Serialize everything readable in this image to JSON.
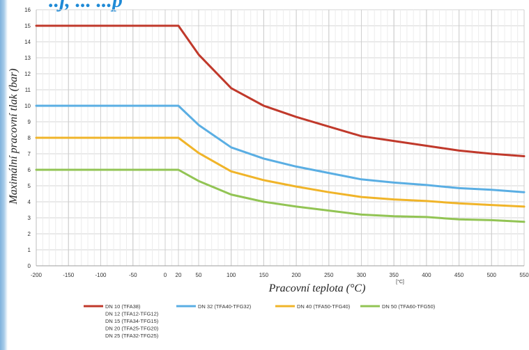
{
  "header": {
    "title_fragment": "..j, ... ...p"
  },
  "chart_data": {
    "type": "line",
    "xlabel": "Pracovní teplota (°C)",
    "ylabel": "Maximální pracovní tlak (bar)",
    "unit_annotation": "[°C]",
    "xlim": [
      -200,
      550
    ],
    "ylim": [
      0,
      16
    ],
    "x_ticks": [
      -200,
      -150,
      -100,
      -50,
      0,
      20,
      50,
      100,
      150,
      200,
      250,
      300,
      350,
      400,
      450,
      500,
      550
    ],
    "y_ticks": [
      0,
      1,
      2,
      3,
      4,
      5,
      6,
      7,
      8,
      9,
      10,
      11,
      12,
      13,
      14,
      15,
      16
    ],
    "grid": true,
    "legend_position": "bottom",
    "series": [
      {
        "name": "DN 10 (TFA38)",
        "extra_legend_lines": [
          "DN 12 (TFA12-TFG12)",
          "DN 15 (TFA34-TFG15)",
          "DN 20 (TFA25-TFG20)",
          "DN 25 (TFA32-TFG25)"
        ],
        "color": "#c0392b",
        "points": [
          [
            -200,
            15
          ],
          [
            20,
            15
          ],
          [
            50,
            13.2
          ],
          [
            100,
            11.1
          ],
          [
            150,
            10
          ],
          [
            200,
            9.3
          ],
          [
            250,
            8.7
          ],
          [
            300,
            8.1
          ],
          [
            350,
            7.8
          ],
          [
            400,
            7.5
          ],
          [
            450,
            7.2
          ],
          [
            500,
            7.0
          ],
          [
            550,
            6.85
          ]
        ]
      },
      {
        "name": "DN 32 (TFA40-TFG32)",
        "color": "#5aaee3",
        "points": [
          [
            -200,
            10
          ],
          [
            20,
            10
          ],
          [
            50,
            8.8
          ],
          [
            100,
            7.4
          ],
          [
            150,
            6.7
          ],
          [
            200,
            6.2
          ],
          [
            250,
            5.8
          ],
          [
            300,
            5.4
          ],
          [
            350,
            5.2
          ],
          [
            400,
            5.05
          ],
          [
            450,
            4.85
          ],
          [
            500,
            4.75
          ],
          [
            550,
            4.6
          ]
        ]
      },
      {
        "name": "DN 40 (TFA50-TFG40)",
        "color": "#f0b429",
        "points": [
          [
            -200,
            8
          ],
          [
            20,
            8
          ],
          [
            50,
            7.05
          ],
          [
            100,
            5.9
          ],
          [
            150,
            5.35
          ],
          [
            200,
            4.95
          ],
          [
            250,
            4.6
          ],
          [
            300,
            4.3
          ],
          [
            350,
            4.15
          ],
          [
            400,
            4.05
          ],
          [
            450,
            3.9
          ],
          [
            500,
            3.8
          ],
          [
            550,
            3.7
          ]
        ]
      },
      {
        "name": "DN 50 (TFA60-TFG50)",
        "color": "#92c454",
        "points": [
          [
            -200,
            6
          ],
          [
            20,
            6
          ],
          [
            50,
            5.3
          ],
          [
            100,
            4.45
          ],
          [
            150,
            4.0
          ],
          [
            200,
            3.7
          ],
          [
            250,
            3.45
          ],
          [
            300,
            3.2
          ],
          [
            350,
            3.1
          ],
          [
            400,
            3.05
          ],
          [
            450,
            2.9
          ],
          [
            500,
            2.85
          ],
          [
            550,
            2.75
          ]
        ]
      }
    ]
  }
}
